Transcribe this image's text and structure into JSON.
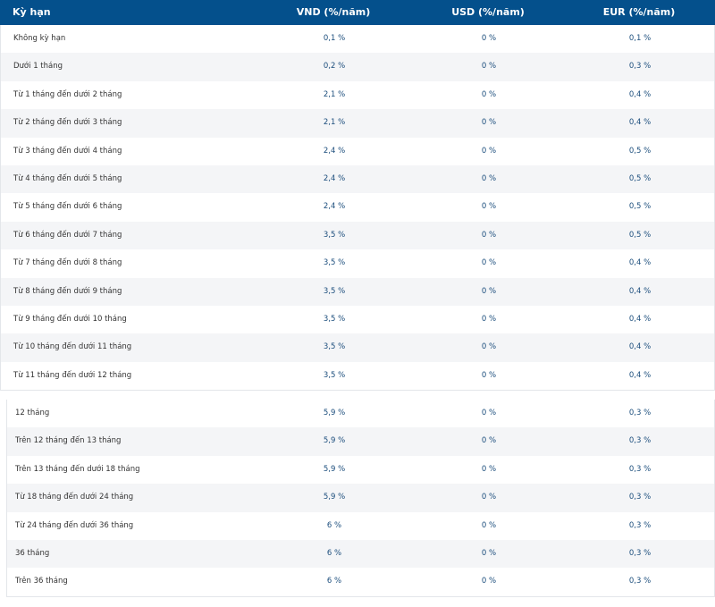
{
  "header": [
    "Kỳ hạn",
    "VND (%/năm)",
    "USD (%/năm)",
    "EUR (%/năm)"
  ],
  "groups": [
    [
      [
        "Không kỳ hạn",
        "0,1 %",
        "0 %",
        "0,1 %"
      ],
      [
        "Dưới 1 tháng",
        "0,2 %",
        "0 %",
        "0,3 %"
      ],
      [
        "Từ 1 tháng đến dưới 2 tháng",
        "2,1 %",
        "0 %",
        "0,4 %"
      ],
      [
        "Từ 2 tháng đến dưới 3 tháng",
        "2,1 %",
        "0 %",
        "0,4 %"
      ],
      [
        "Từ 3 tháng đến dưới 4 tháng",
        "2,4 %",
        "0 %",
        "0,5 %"
      ],
      [
        "Từ 4 tháng đến dưới 5 tháng",
        "2,4 %",
        "0 %",
        "0,5 %"
      ],
      [
        "Từ 5 tháng đến dưới 6 tháng",
        "2,4 %",
        "0 %",
        "0,5 %"
      ],
      [
        "Từ 6 tháng đến dưới 7 tháng",
        "3,5 %",
        "0 %",
        "0,5 %"
      ],
      [
        "Từ 7 tháng đến dưới 8 tháng",
        "3,5 %",
        "0 %",
        "0,4 %"
      ],
      [
        "Từ 8 tháng đến dưới 9 tháng",
        "3,5 %",
        "0 %",
        "0,4 %"
      ],
      [
        "Từ 9 tháng đến dưới 10 tháng",
        "3,5 %",
        "0 %",
        "0,4 %"
      ],
      [
        "Từ 10 tháng đến dưới 11 tháng",
        "3,5 %",
        "0 %",
        "0,4 %"
      ],
      [
        "Từ 11 tháng đến dưới 12 tháng",
        "3,5 %",
        "0 %",
        "0,4 %"
      ]
    ],
    [
      [
        "12 tháng",
        "5,9 %",
        "0 %",
        "0,3 %"
      ],
      [
        "Trên 12 tháng đến 13 tháng",
        "5,9 %",
        "0 %",
        "0,3 %"
      ],
      [
        "Trên 13 tháng đến dưới 18 tháng",
        "5,9 %",
        "0 %",
        "0,3 %"
      ],
      [
        "Từ 18 tháng đến dưới 24 tháng",
        "5,9 %",
        "0 %",
        "0,3 %"
      ],
      [
        "Từ 24 tháng đến dưới 36 tháng",
        "6 %",
        "0 %",
        "0,3 %"
      ],
      [
        "36 tháng",
        "6 %",
        "0 %",
        "0,3 %"
      ],
      [
        "Trên 36 tháng",
        "6 %",
        "0 %",
        "0,3 %"
      ]
    ]
  ]
}
